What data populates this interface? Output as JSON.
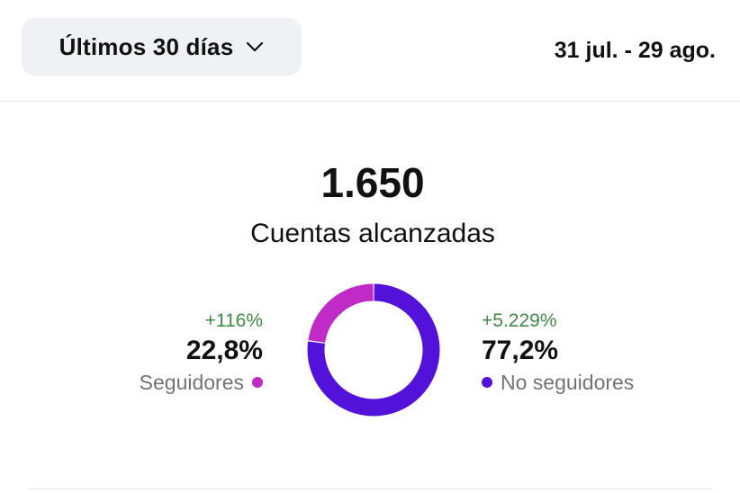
{
  "header": {
    "range_label": "Últimos 30 días",
    "date_range": "31 jul. - 29 ago."
  },
  "summary": {
    "total": "1.650",
    "total_label": "Cuentas alcanzadas"
  },
  "followers": {
    "change": "+116%",
    "percent": "22,8%",
    "label": "Seguidores",
    "color": "#c02bc7"
  },
  "non_followers": {
    "change": "+5.229%",
    "percent": "77,2%",
    "label": "No seguidores",
    "color": "#5212d9"
  },
  "chart_data": {
    "type": "pie",
    "categories": [
      "Seguidores",
      "No seguidores"
    ],
    "values": [
      22.8,
      77.2
    ]
  }
}
